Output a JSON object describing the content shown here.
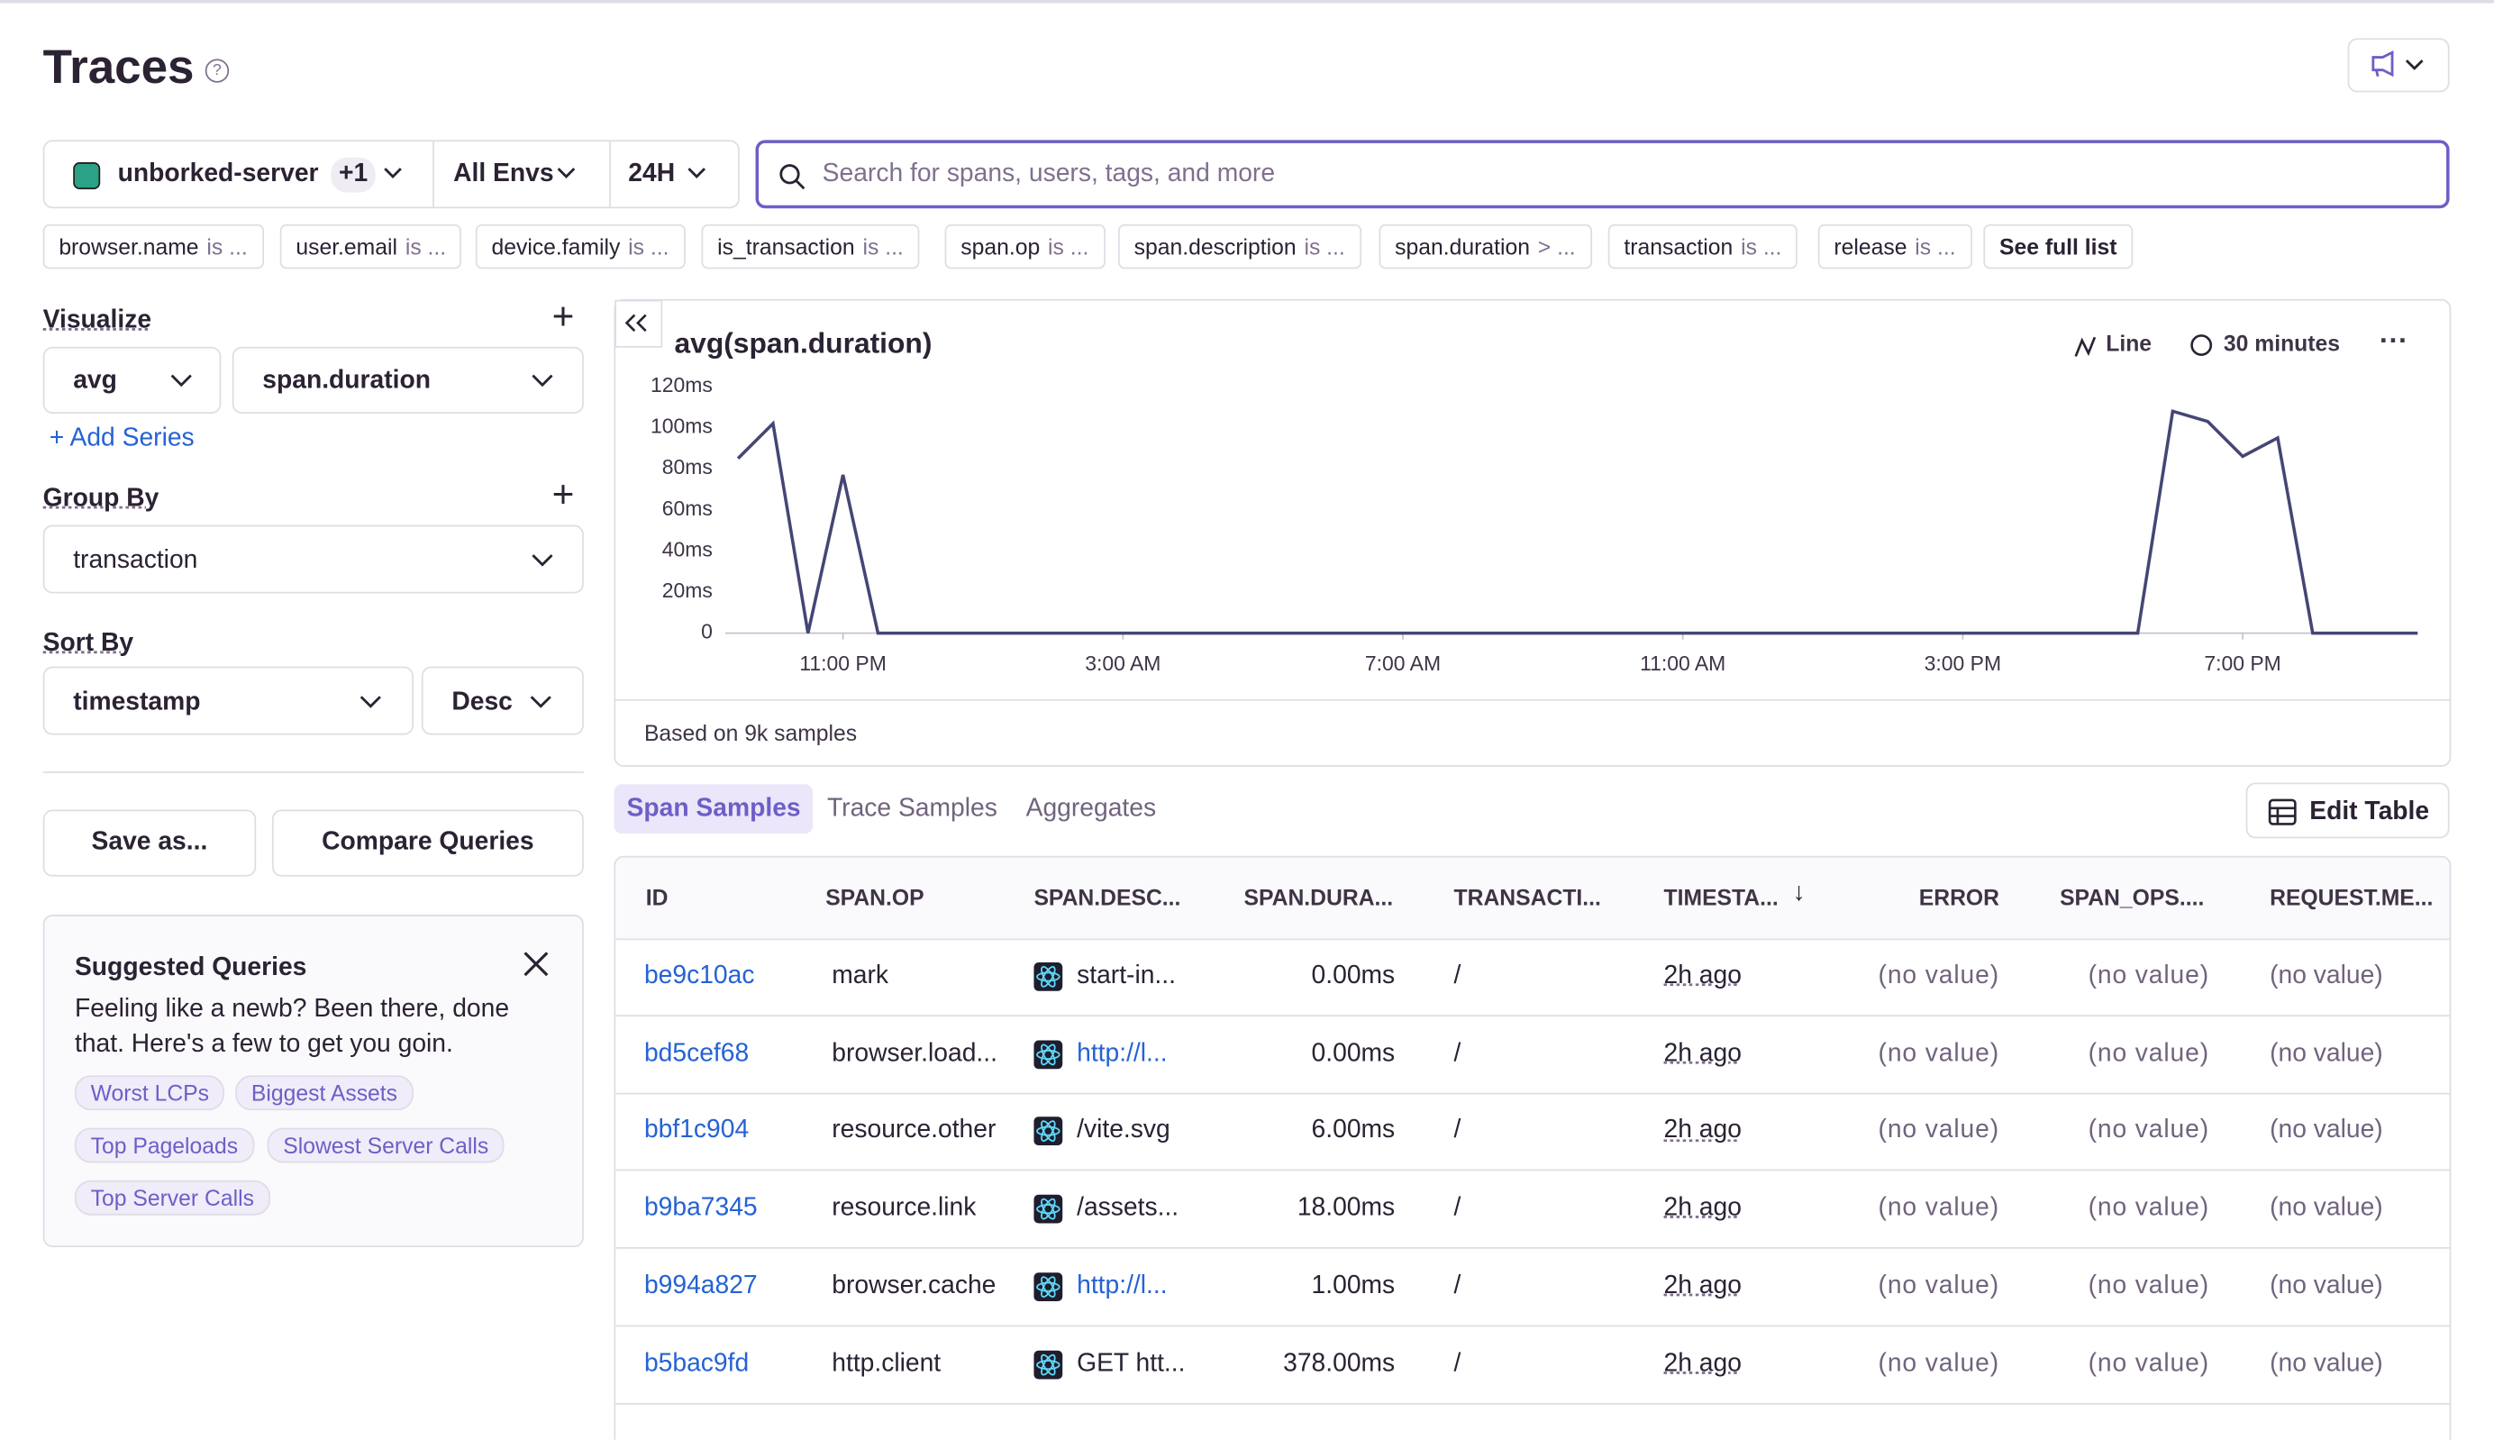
{
  "header": {
    "title": "Traces"
  },
  "selectors": {
    "project": "unborked-server",
    "project_extra": "+1",
    "env": "All Envs",
    "period": "24H"
  },
  "search_placeholder": "Search for spans, users, tags, and more",
  "filters": [
    {
      "key": "browser.name",
      "op": "is ..."
    },
    {
      "key": "user.email",
      "op": "is ..."
    },
    {
      "key": "device.family",
      "op": "is ..."
    },
    {
      "key": "is_transaction",
      "op": "is ..."
    },
    {
      "key": "span.op",
      "op": "is ..."
    },
    {
      "key": "span.description",
      "op": "is ..."
    },
    {
      "key": "span.duration",
      "op": "> ..."
    },
    {
      "key": "transaction",
      "op": "is ..."
    },
    {
      "key": "release",
      "op": "is ..."
    }
  ],
  "see_full_list": "See full list",
  "sidebar": {
    "visualize_label": "Visualize",
    "aggregate": "avg",
    "field": "span.duration",
    "add_series": "Add Series",
    "group_by_label": "Group By",
    "group_by": "transaction",
    "sort_by_label": "Sort By",
    "sort_field": "timestamp",
    "sort_order": "Desc",
    "save_as": "Save as...",
    "compare": "Compare Queries",
    "suggested": {
      "title": "Suggested Queries",
      "text": "Feeling like a newb? Been there, done that. Here's a few to get you goin.",
      "tags": [
        "Worst LCPs",
        "Biggest Assets",
        "Top Pageloads",
        "Slowest Server Calls",
        "Top Server Calls"
      ]
    }
  },
  "chart_data": {
    "type": "line",
    "title": "avg(span.duration)",
    "display": "Line",
    "interval": "30 minutes",
    "footnote": "Based on 9k samples",
    "categories": [
      null,
      null,
      null,
      "11:00 PM",
      null,
      null,
      null,
      null,
      null,
      null,
      null,
      "3:00 AM",
      null,
      null,
      null,
      null,
      null,
      null,
      null,
      "7:00 AM",
      null,
      null,
      null,
      null,
      null,
      null,
      null,
      "11:00 AM",
      null,
      null,
      null,
      null,
      null,
      null,
      null,
      "3:00 PM",
      null,
      null,
      null,
      null,
      null,
      null,
      null,
      "7:00 PM",
      null,
      null,
      null,
      null,
      null
    ],
    "series": [
      {
        "color": "#444674",
        "values": [
          85,
          102,
          0,
          77,
          0,
          0,
          0,
          0,
          0,
          0,
          0,
          0,
          0,
          0,
          0,
          0,
          0,
          0,
          0,
          0,
          0,
          0,
          0,
          0,
          0,
          0,
          0,
          0,
          0,
          0,
          0,
          0,
          0,
          0,
          0,
          0,
          0,
          0,
          0,
          0,
          0,
          108,
          103,
          86,
          95,
          0,
          0,
          0,
          0
        ]
      }
    ],
    "ylim": [
      0,
      120
    ],
    "yticks": [
      0,
      {
        "value": 20,
        "label": "20ms"
      },
      {
        "value": 40,
        "label": "40ms"
      },
      {
        "value": 60,
        "label": "60ms"
      },
      {
        "value": 80,
        "label": "80ms"
      },
      {
        "value": 100,
        "label": "100ms"
      },
      {
        "value": 120,
        "label": "120ms"
      }
    ],
    "grid": false
  },
  "tabs": [
    "Span Samples",
    "Trace Samples",
    "Aggregates"
  ],
  "edit_table": "Edit Table",
  "table": {
    "headers": [
      "ID",
      "SPAN.OP",
      "SPAN.DESC...",
      "SPAN.DURA...",
      "TRANSACTI...",
      "TIMESTA...",
      "ERROR",
      "SPAN_OPS....",
      "REQUEST.ME..."
    ],
    "rows": [
      [
        "be9c10ac",
        "mark",
        "start-in...",
        "0.00ms",
        "/",
        "2h ago",
        "(no value)",
        "(no value)",
        "(no value)"
      ],
      [
        "bd5cef68",
        "browser.load...",
        "http://l...",
        "0.00ms",
        "/",
        "2h ago",
        "(no value)",
        "(no value)",
        "(no value)"
      ],
      [
        "bbf1c904",
        "resource.other",
        "/vite.svg",
        "6.00ms",
        "/",
        "2h ago",
        "(no value)",
        "(no value)",
        "(no value)"
      ],
      [
        "b9ba7345",
        "resource.link",
        "/assets...",
        "18.00ms",
        "/",
        "2h ago",
        "(no value)",
        "(no value)",
        "(no value)"
      ],
      [
        "b994a827",
        "browser.cache",
        "http://l...",
        "1.00ms",
        "/",
        "2h ago",
        "(no value)",
        "(no value)",
        "(no value)"
      ],
      [
        "b5bac9fd",
        "http.client",
        "GET htt...",
        "378.00ms",
        "/",
        "2h ago",
        "(no value)",
        "(no value)",
        "(no value)"
      ]
    ]
  }
}
